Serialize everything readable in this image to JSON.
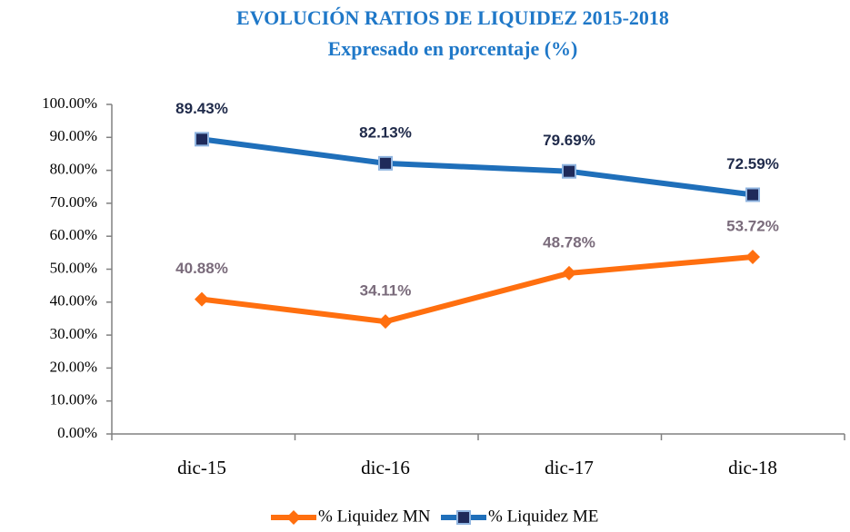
{
  "chart_data": {
    "type": "line",
    "title": "EVOLUCIÓN RATIOS DE LIQUIDEZ 2015-2018",
    "subtitle": "Expresado en porcentaje (%)",
    "categories": [
      "dic-15",
      "dic-16",
      "dic-17",
      "dic-18"
    ],
    "series": [
      {
        "name": "% Liquidez MN",
        "color": "#ff6f0f",
        "marker": "diamond",
        "label_color": "#7a6b7b",
        "values": [
          40.88,
          34.11,
          48.78,
          53.72
        ],
        "value_labels": [
          "40.88%",
          "34.11%",
          "48.78%",
          "53.72%"
        ]
      },
      {
        "name": "% Liquidez ME",
        "color": "#1f6fba",
        "marker": "square",
        "label_color": "#1f2a4a",
        "values": [
          89.43,
          82.13,
          79.69,
          72.59
        ],
        "value_labels": [
          "89.43%",
          "82.13%",
          "79.69%",
          "72.59%"
        ]
      }
    ],
    "ylim": [
      0,
      100
    ],
    "yticks": [
      {
        "value": 0,
        "label": "0.00%"
      },
      {
        "value": 10,
        "label": "10.00%"
      },
      {
        "value": 20,
        "label": "20.00%"
      },
      {
        "value": 30,
        "label": "30.00%"
      },
      {
        "value": 40,
        "label": "40.00%"
      },
      {
        "value": 50,
        "label": "50.00%"
      },
      {
        "value": 60,
        "label": "60.00%"
      },
      {
        "value": 70,
        "label": "70.00%"
      },
      {
        "value": 80,
        "label": "80.00%"
      },
      {
        "value": 90,
        "label": "90.00%"
      },
      {
        "value": 100,
        "label": "100.00%"
      }
    ],
    "grid": false,
    "legend": "bottom"
  }
}
